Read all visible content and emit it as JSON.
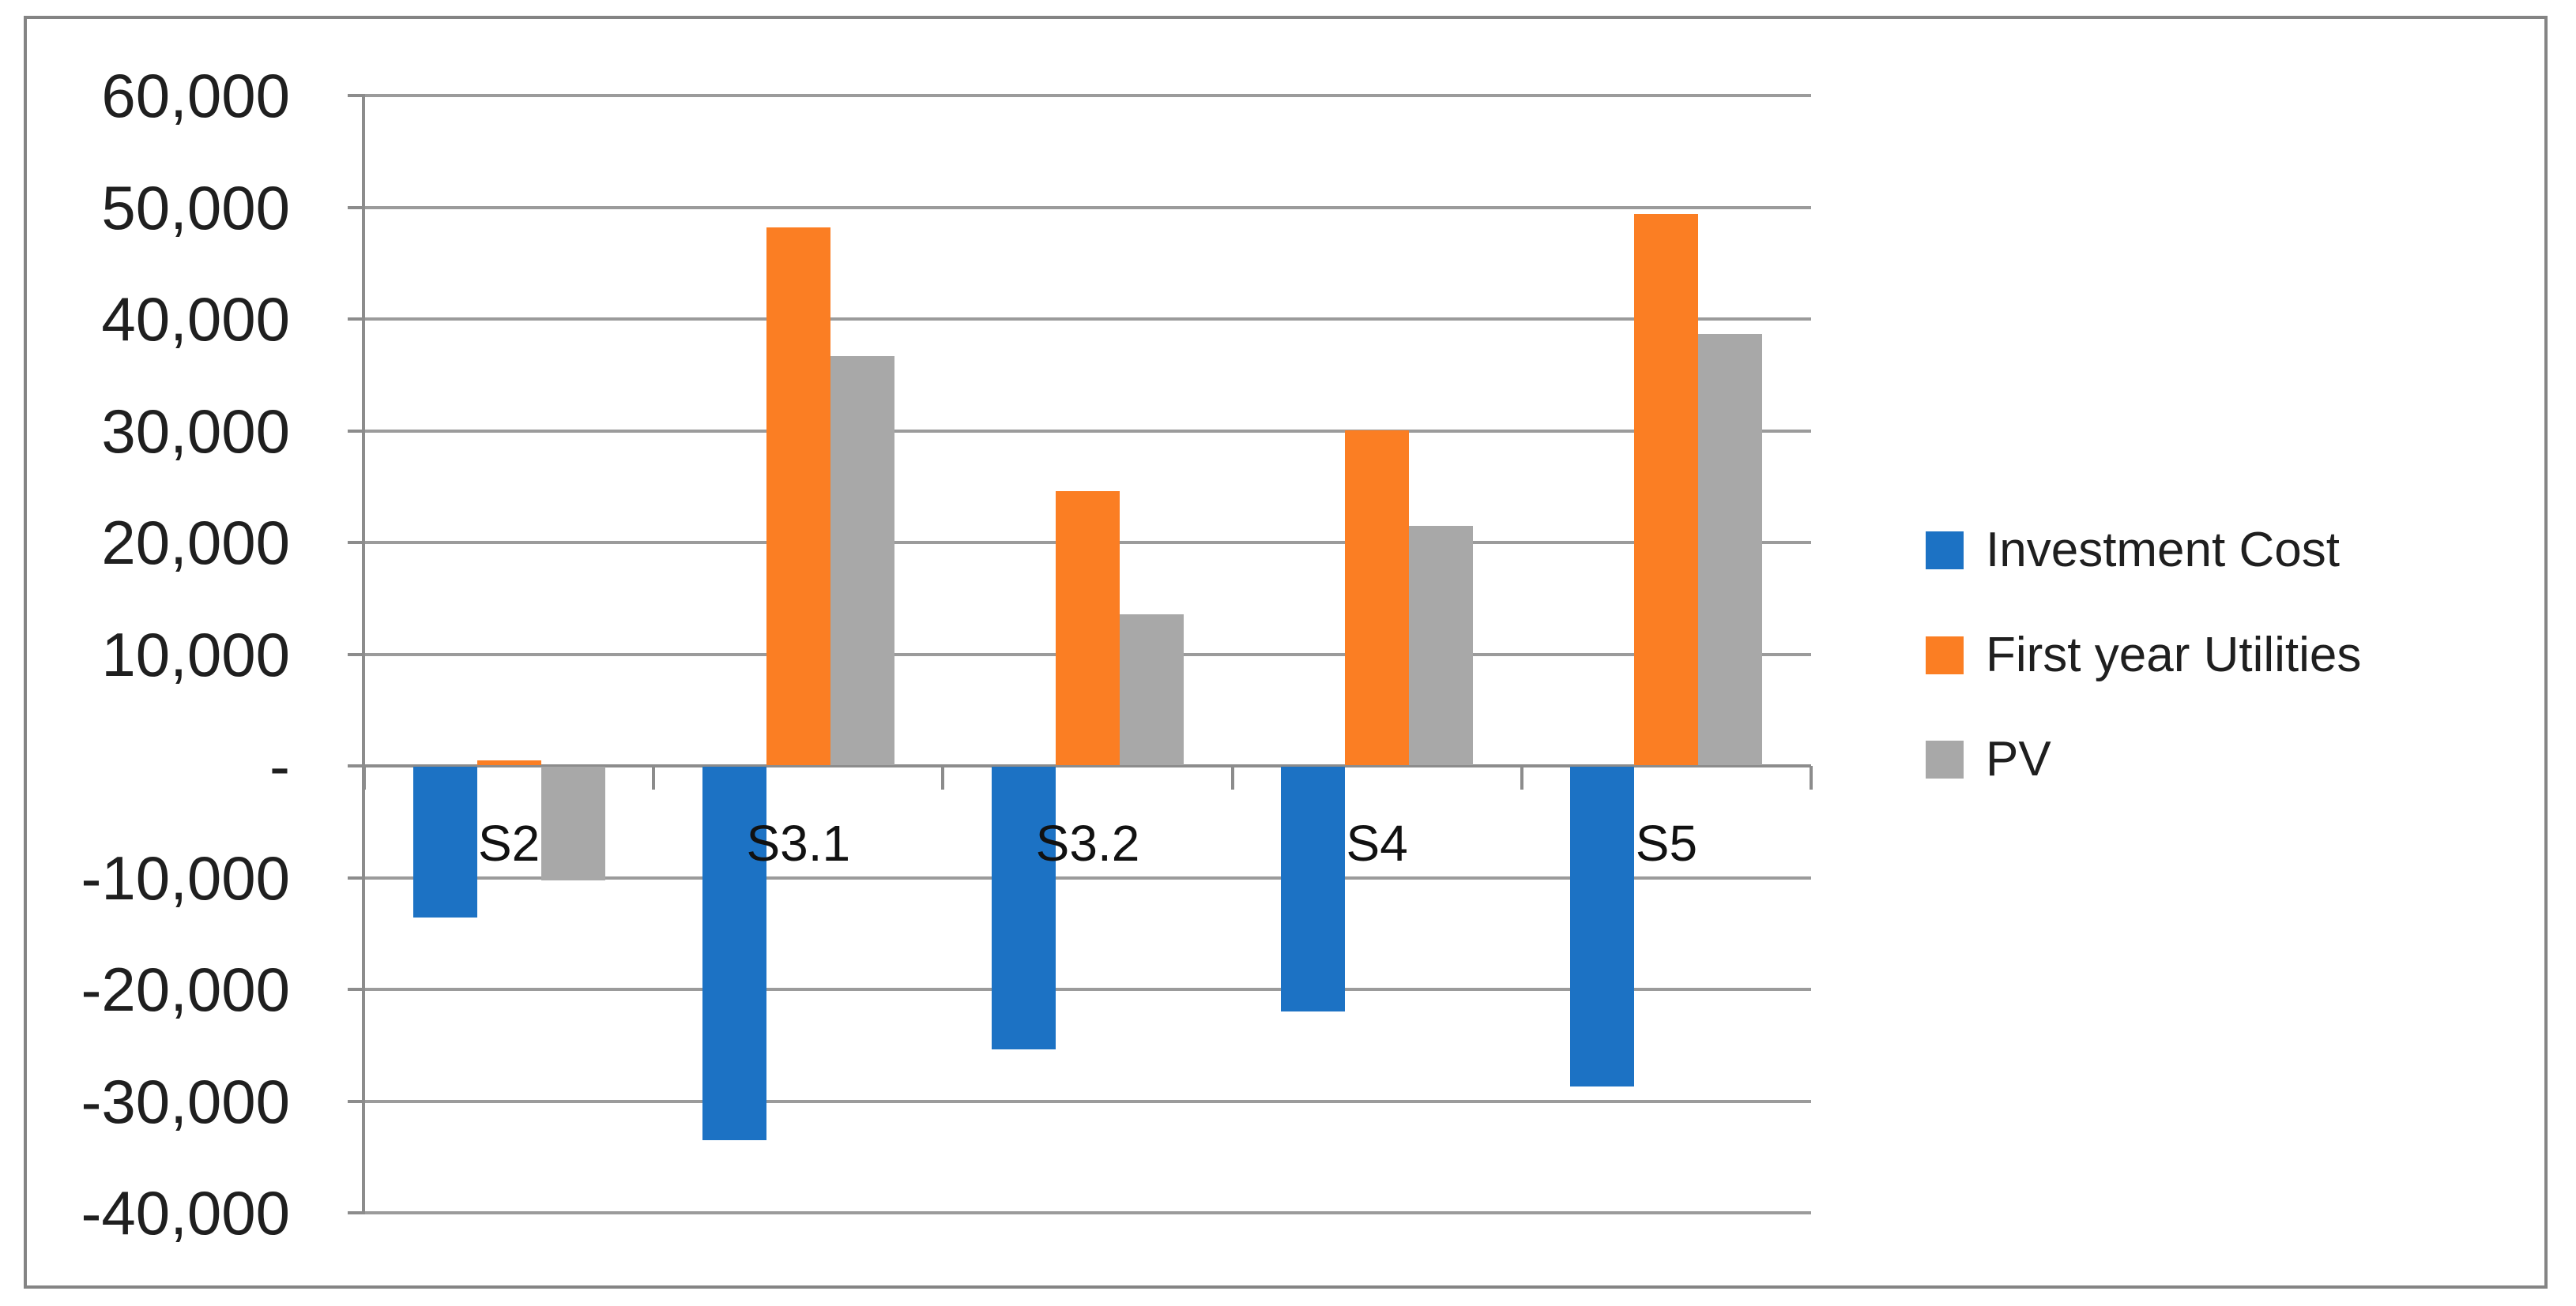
{
  "chart_data": {
    "type": "bar",
    "categories": [
      "S2",
      "S3.1",
      "S3.2",
      "S4",
      "S5"
    ],
    "series": [
      {
        "name": "Investment Cost",
        "color": "#1C72C4",
        "values": [
          -13500,
          -33400,
          -25300,
          -21900,
          -28600
        ]
      },
      {
        "name": "First year Utilities",
        "color": "#FB7E23",
        "values": [
          400,
          48100,
          24500,
          30000,
          49300
        ]
      },
      {
        "name": "PV",
        "color": "#A8A8A8",
        "values": [
          -10200,
          36600,
          13500,
          21400,
          38600
        ]
      }
    ],
    "title": "",
    "xlabel": "",
    "ylabel": "",
    "ylim": [
      -40000,
      60000
    ],
    "ytick_step": 10000,
    "ytick_labels": [
      "60,000",
      "50,000",
      "40,000",
      "30,000",
      "20,000",
      "10,000",
      "-",
      "-10,000",
      "-20,000",
      "-30,000",
      "-40,000"
    ],
    "grid": true,
    "legend_position": "right"
  },
  "colors": {
    "gridline": "#9b9b9b",
    "axis": "#8c8c8c",
    "chart_border": "#848484",
    "text": "#1f1f1f",
    "background": "#ffffff"
  }
}
